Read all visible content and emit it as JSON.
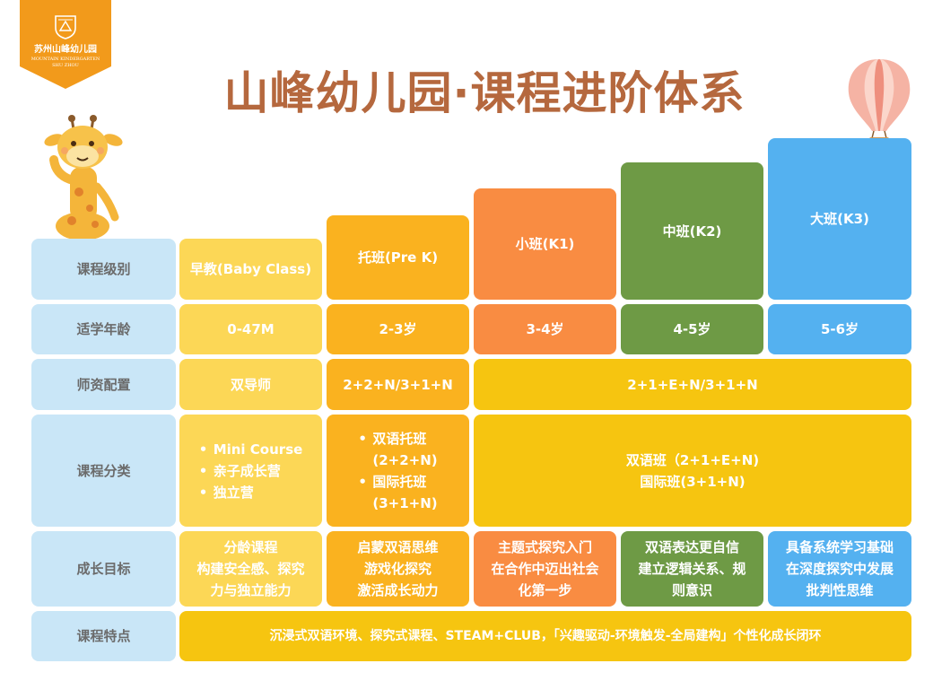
{
  "brand": {
    "name_cn": "苏州山峰幼儿园",
    "name_en": "MOUNTAIN KINDERGARTEN",
    "city": "SHU ZHOU"
  },
  "title": "山峰幼儿园·课程进阶体系",
  "row_headers": [
    "课程级别",
    "适学年龄",
    "师资配置",
    "课程分类",
    "成长目标",
    "课程特点"
  ],
  "levels": [
    "早教(Baby Class)",
    "托班(Pre K)",
    "小班(K1)",
    "中班(K2)",
    "大班(K3)"
  ],
  "ages": [
    "0-47M",
    "2-3岁",
    "3-4岁",
    "4-5岁",
    "5-6岁"
  ],
  "teachers": [
    "双导师",
    "2+2+N/3+1+N",
    "2+1+E+N/3+1+N"
  ],
  "categories": {
    "baby": [
      "Mini Course",
      "亲子成长营",
      "独立营"
    ],
    "prek": {
      "item1": "双语托班",
      "item1_sub": "(2+2+N)",
      "item2": "国际托班",
      "item2_sub": "(3+1+N)"
    },
    "kinder": [
      "双语班（2+1+E+N)",
      "国际班(3+1+N)"
    ]
  },
  "goals": [
    [
      "分龄课程",
      "构建安全感、探究",
      "力与独立能力"
    ],
    [
      "启蒙双语思维",
      "游戏化探究",
      "激活成长动力"
    ],
    [
      "主题式探究入门",
      "在合作中迈出社会",
      "化第一步"
    ],
    [
      "双语表达更自信",
      "建立逻辑关系、规",
      "则意识"
    ],
    [
      "具备系统学习基础",
      "在深度探究中发展",
      "批判性思维"
    ]
  ],
  "features": "沉浸式双语环境、探究式课程、STEAM+CLUB，「兴趣驱动-环境触发-全局建构」个性化成长闭环",
  "colors": {
    "header": "#c9e6f7",
    "baby": "#fcd756",
    "prek": "#fab21f",
    "k1": "#f98c42",
    "k2": "#6e9a45",
    "k3": "#54b1f0",
    "span": "#f6c510",
    "title": "#b5683e",
    "badge": "#f29a1b"
  },
  "icons": [
    "school-crest-icon",
    "giraffe-mascot",
    "hot-air-balloon"
  ]
}
